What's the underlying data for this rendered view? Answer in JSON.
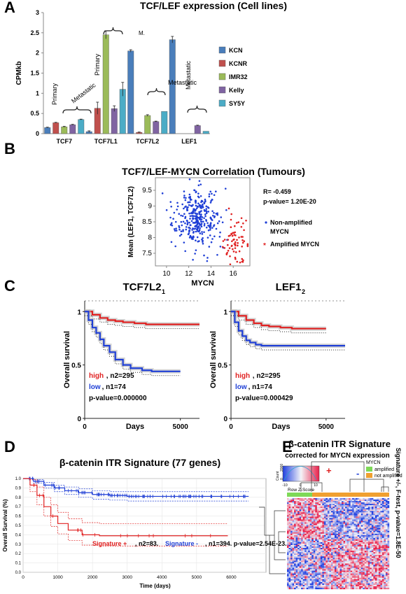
{
  "panels": {
    "A": "A",
    "B": "B",
    "C": "C",
    "D": "D",
    "E": "E"
  },
  "chart_data": [
    {
      "id": "A",
      "type": "bar",
      "title": "TCF/LEF expression (Cell lines)",
      "ylabel": "CPMkb",
      "ylim": [
        0,
        3
      ],
      "yticks": [
        "0",
        "0.5",
        "1",
        "1.5",
        "2",
        "2.5",
        "3"
      ],
      "categories": [
        "TCF7",
        "TCF7L1",
        "TCF7L2",
        "LEF1"
      ],
      "series": [
        {
          "name": "KCN",
          "color": "#4a7ebb",
          "values": [
            0.15,
            0.05,
            2.05,
            2.33
          ],
          "errors": [
            0.01,
            0.02,
            0.03,
            0.08
          ]
        },
        {
          "name": "KCNR",
          "color": "#c0504d",
          "values": [
            0.27,
            0.63,
            0.03,
            0.0
          ],
          "errors": [
            0.01,
            0.15,
            0.01,
            0.0
          ]
        },
        {
          "name": "IMR32",
          "color": "#9bbb59",
          "values": [
            0.17,
            2.45,
            0.45,
            0.0
          ],
          "errors": [
            0.01,
            0.1,
            0.02,
            0.0
          ]
        },
        {
          "name": "Kelly",
          "color": "#8064a2",
          "values": [
            0.22,
            0.62,
            0.3,
            0.2
          ],
          "errors": [
            0.01,
            0.07,
            0.01,
            0.01
          ]
        },
        {
          "name": "SY5Y",
          "color": "#4bacc6",
          "values": [
            0.35,
            1.1,
            0.55,
            0.06
          ],
          "errors": [
            0.01,
            0.17,
            0.0,
            0.0
          ]
        }
      ],
      "annotations": {
        "primary": "Primary",
        "metastatic": "Metastatic",
        "metastatic_short": "M."
      }
    },
    {
      "id": "B",
      "type": "scatter",
      "title": "TCF7/LEF-MYCN Correlation (Tumours)",
      "xlabel": "MYCN",
      "ylabel": "Mean (LEF1, TCF7L2)",
      "xlim": [
        9,
        17.5
      ],
      "ylim": [
        7.1,
        9.9
      ],
      "xticks": [
        "10",
        "12",
        "14",
        "16"
      ],
      "yticks": [
        "7.5",
        "8",
        "8.5",
        "9",
        "9.5"
      ],
      "stats": {
        "r": "R= -0.459",
        "p": "p-value= 1.20E-20"
      },
      "legend": [
        {
          "label": "Non-amplified MYCN",
          "color": "#1f3fd6",
          "label_line1": "Non-amplified",
          "label_line2": "MYCN"
        },
        {
          "label": "Amplified MYCN",
          "color": "#e02020"
        }
      ],
      "series": [
        {
          "name": "Non-amplified MYCN",
          "color": "#1f3fd6",
          "cluster": {
            "cx": 12.7,
            "cy": 8.6,
            "sx": 1.0,
            "sy": 0.45,
            "n": 330
          }
        },
        {
          "name": "Amplified MYCN",
          "color": "#e02020",
          "cluster": {
            "cx": 16.1,
            "cy": 7.9,
            "sx": 0.55,
            "sy": 0.35,
            "n": 70
          }
        }
      ]
    },
    {
      "id": "C1",
      "type": "line",
      "title": "TCF7L2",
      "title_sub": "1",
      "xlabel": "Days",
      "ylabel": "Overall survival",
      "xlim": [
        0,
        6000
      ],
      "ylim": [
        0,
        1.1
      ],
      "xticks": [
        "0",
        "5000"
      ],
      "yticks": [
        "0",
        "0.5",
        "1"
      ],
      "series": [
        {
          "name": "high",
          "color": "#e02020",
          "x": [
            0,
            400,
            800,
            1200,
            1600,
            2000,
            2600,
            3200,
            6000
          ],
          "y": [
            1,
            0.97,
            0.94,
            0.92,
            0.91,
            0.9,
            0.89,
            0.88,
            0.88
          ]
        },
        {
          "name": "low",
          "color": "#1f3fd6",
          "x": [
            0,
            200,
            400,
            600,
            800,
            1000,
            1300,
            1600,
            2000,
            2400,
            3000,
            3500,
            5000
          ],
          "y": [
            1,
            0.92,
            0.85,
            0.8,
            0.74,
            0.68,
            0.62,
            0.55,
            0.5,
            0.47,
            0.45,
            0.44,
            0.44
          ]
        }
      ],
      "legend": [
        {
          "label": "high",
          "detail": ", n2=295",
          "color": "#e02020"
        },
        {
          "label": "low",
          "detail": ", n1=74",
          "color": "#1f3fd6"
        }
      ],
      "pvalue": "p-value=0.000000"
    },
    {
      "id": "C2",
      "type": "line",
      "title": "LEF1",
      "title_sub": "2",
      "xlabel": "Days",
      "ylabel": "Overall survival",
      "xlim": [
        0,
        6000
      ],
      "ylim": [
        0,
        1.1
      ],
      "xticks": [
        "0",
        "5000"
      ],
      "yticks": [
        "0",
        "0.5",
        "1"
      ],
      "series": [
        {
          "name": "high",
          "color": "#e02020",
          "x": [
            0,
            400,
            800,
            1200,
            1600,
            2000,
            2600,
            3200,
            5000
          ],
          "y": [
            1,
            0.96,
            0.92,
            0.89,
            0.87,
            0.86,
            0.85,
            0.84,
            0.84
          ]
        },
        {
          "name": "low",
          "color": "#1f3fd6",
          "x": [
            0,
            200,
            400,
            600,
            800,
            1000,
            1300,
            1600,
            2000,
            6000
          ],
          "y": [
            1,
            0.9,
            0.82,
            0.77,
            0.73,
            0.71,
            0.69,
            0.68,
            0.68,
            0.68
          ]
        }
      ],
      "legend": [
        {
          "label": "high",
          "detail": ", n2=295",
          "color": "#e02020"
        },
        {
          "label": "low",
          "detail": ", n1=74",
          "color": "#1f3fd6"
        }
      ],
      "pvalue": "p-value=0.000429"
    },
    {
      "id": "D",
      "type": "line",
      "title": "β-catenin ITR Signature (77 genes)",
      "xlabel": "Time (days)",
      "ylabel": "Overall Survival (%)",
      "xlim": [
        0,
        7000
      ],
      "ylim": [
        0,
        1.0
      ],
      "xticks": [
        "0",
        "1000",
        "2000",
        "3000",
        "4000",
        "5000",
        "6000"
      ],
      "yticks": [
        "0.0",
        "0.1",
        "0.2",
        "0.3",
        "0.4",
        "0.5",
        "0.6",
        "0.7",
        "0.8",
        "0.9",
        "1.0"
      ],
      "series": [
        {
          "name": "Signature -",
          "color": "#1f3fd6",
          "x": [
            0,
            300,
            600,
            900,
            1200,
            1600,
            2000,
            2500,
            3000,
            6500
          ],
          "y": [
            1,
            0.97,
            0.93,
            0.9,
            0.87,
            0.85,
            0.83,
            0.82,
            0.81,
            0.81
          ],
          "ci_upper": [
            1,
            0.99,
            0.96,
            0.93,
            0.91,
            0.89,
            0.87,
            0.86,
            0.86,
            0.86
          ],
          "ci_lower": [
            1,
            0.95,
            0.9,
            0.86,
            0.83,
            0.8,
            0.78,
            0.77,
            0.76,
            0.76
          ]
        },
        {
          "name": "Signature +",
          "color": "#e02020",
          "x": [
            0,
            200,
            400,
            600,
            800,
            1000,
            1300,
            1700,
            2200,
            5900
          ],
          "y": [
            1,
            0.93,
            0.82,
            0.7,
            0.6,
            0.52,
            0.45,
            0.4,
            0.39,
            0.39
          ],
          "ci_upper": [
            1,
            0.99,
            0.91,
            0.8,
            0.72,
            0.64,
            0.57,
            0.53,
            0.52,
            0.52
          ],
          "ci_lower": [
            1,
            0.86,
            0.72,
            0.6,
            0.49,
            0.41,
            0.34,
            0.29,
            0.28,
            0.28
          ]
        }
      ],
      "legend_text": {
        "pos": "Signature +",
        "pos_detail": ", n2=83. ",
        "neg": "Signature -",
        "neg_detail": ", n1=394. p-value=2.54E-23."
      }
    },
    {
      "id": "E",
      "type": "heatmap",
      "title": "β-catenin ITR Signature",
      "subtitle": "corrected for MYCN expression",
      "color_key": {
        "count_label": "Count",
        "count_ticks": [
          "0",
          "2000"
        ],
        "ticks": [
          "-10",
          "0",
          "10"
        ],
        "label": "Row Z-Score"
      },
      "plus": "+",
      "minus": "-",
      "legend_title": "MYCN",
      "legend": [
        {
          "label": "amplified",
          "color": "#7ed957"
        },
        {
          "label": "not amplified",
          "color": "#f0a030"
        }
      ],
      "side_label": "Signature +/-, F-test, p-value=1.8E-50",
      "colors": {
        "low": "#2040e0",
        "mid": "#f4f4f8",
        "high": "#e8204a"
      }
    }
  ]
}
